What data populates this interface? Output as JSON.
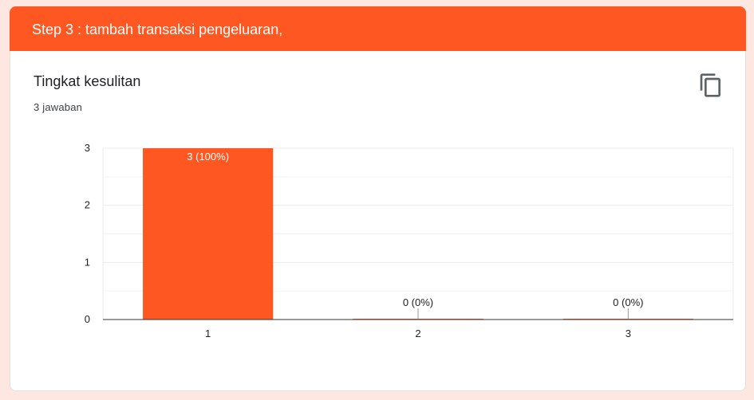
{
  "section": {
    "title": "Step 3 : tambah transaksi pengeluaran,"
  },
  "question": {
    "title": "Tingkat kesulitan",
    "response_count": "3 jawaban",
    "copy_icon": "copy-icon"
  },
  "colors": {
    "accent": "#ff5722",
    "grid": "#ebebeb",
    "axis": "#333333",
    "text": "#202124"
  },
  "chart_data": {
    "type": "bar",
    "categories": [
      "1",
      "2",
      "3"
    ],
    "values": [
      3,
      0,
      0
    ],
    "data_labels": [
      "3 (100%)",
      "0 (0%)",
      "0 (0%)"
    ],
    "yticks": [
      "0",
      "1",
      "2",
      "3"
    ],
    "ylim": [
      0,
      3
    ],
    "grid": true,
    "legend": "none"
  }
}
